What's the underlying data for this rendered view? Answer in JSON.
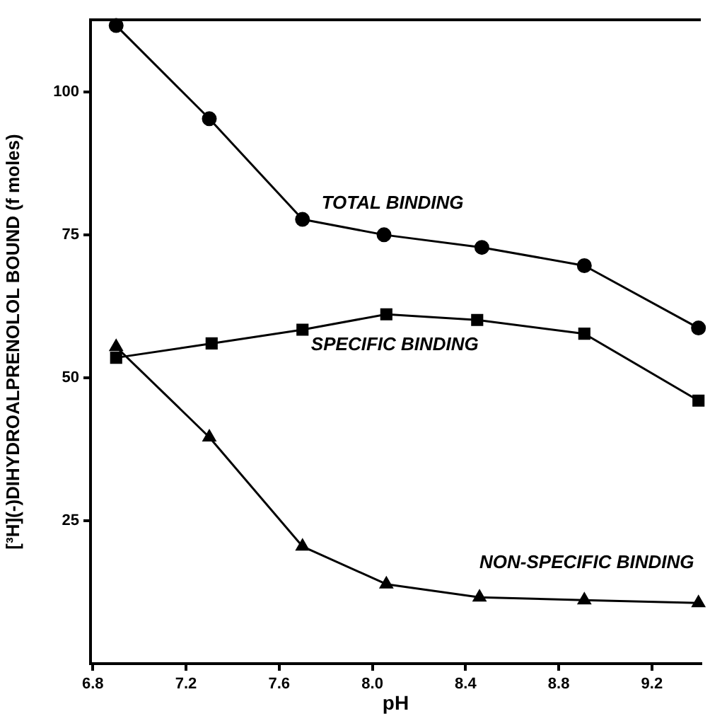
{
  "chart_data": {
    "type": "line",
    "xlabel": "pH",
    "ylabel": "[³H](-)DIHYDROALPRENOLOL BOUND (f moles)",
    "xlim": [
      6.79,
      9.41
    ],
    "ylim": [
      0,
      112.6
    ],
    "xticks": [
      6.8,
      7.2,
      7.6,
      {
        "value": 8,
        "label": "8.0"
      },
      8.4,
      8.8,
      9.2
    ],
    "yticks": [
      25,
      50,
      75,
      100
    ],
    "grid": false,
    "legend": false,
    "line_style": "solid",
    "series": [
      {
        "name": "TOTAL BINDING",
        "color": "#000000",
        "marker": "circle",
        "x": [
          6.9,
          7.3,
          7.7,
          8.05,
          8.47,
          8.91,
          9.4
        ],
        "values": [
          111.6,
          95.3,
          77.7,
          75,
          72.8,
          69.6,
          58.7
        ]
      },
      {
        "name": "SPECIFIC BINDING",
        "color": "#000000",
        "marker": "square",
        "x": [
          6.9,
          7.31,
          7.7,
          8.06,
          8.45,
          8.91,
          9.4
        ],
        "values": [
          53.5,
          56,
          58.4,
          61.1,
          60.1,
          57.7,
          46
        ]
      },
      {
        "name": "NON-SPECIFIC BINDING",
        "color": "#000000",
        "marker": "triangle",
        "x": [
          6.9,
          7.3,
          7.7,
          8.06,
          8.46,
          8.91,
          9.4
        ],
        "values": [
          55.4,
          39.6,
          20.5,
          13.9,
          11.6,
          11.1,
          10.6
        ]
      }
    ]
  }
}
